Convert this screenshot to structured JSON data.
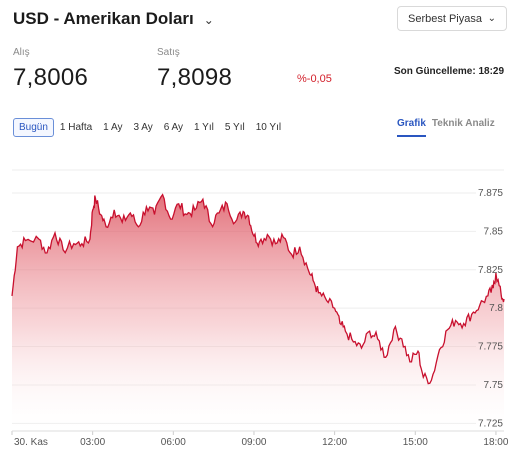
{
  "header": {
    "title": "USD - Amerikan Doları",
    "dropdown_icon": "chevron-down-icon"
  },
  "market": {
    "label": "Serbest Piyasa",
    "icon": "chevron-down-icon"
  },
  "quote": {
    "buy_label": "Alış",
    "buy_value": "7,8006",
    "sell_label": "Satış",
    "sell_value": "7,8098",
    "change": "%-0,05",
    "updated": "Son Güncelleme: 18:29"
  },
  "ranges": [
    "Bugün",
    "1 Hafta",
    "1 Ay",
    "3 Ay",
    "6 Ay",
    "1 Yıl",
    "5 Yıl",
    "10 Yıl"
  ],
  "active_range": 0,
  "tabs": [
    "Grafik",
    "Teknik Analiz"
  ],
  "active_tab": 0,
  "colors": {
    "line": "#c8102e",
    "accent": "#2a56c0",
    "negative": "#d3202b"
  },
  "chart_data": {
    "type": "area",
    "x_ticks": [
      "30. Kas",
      "03:00",
      "06:00",
      "09:00",
      "12:00",
      "15:00",
      "18:00"
    ],
    "y_ticks": [
      "7.725",
      "7.75",
      "7.775",
      "7.8",
      "7.825",
      "7.85",
      "7.875"
    ],
    "ylim": [
      7.72,
      7.89
    ],
    "xlim": [
      0,
      18.3
    ],
    "x": [
      0,
      0.2,
      0.5,
      1.0,
      1.3,
      1.6,
      1.9,
      2.3,
      2.6,
      2.9,
      3.0,
      3.1,
      3.3,
      3.5,
      3.8,
      4.1,
      4.4,
      4.7,
      5.0,
      5.3,
      5.6,
      5.9,
      6.2,
      6.5,
      6.8,
      7.1,
      7.4,
      7.7,
      8.0,
      8.3,
      8.6,
      8.8,
      9.0,
      9.2,
      9.5,
      9.8,
      10.1,
      10.4,
      10.7,
      11.0,
      11.2,
      11.4,
      11.7,
      12.0,
      12.2,
      12.4,
      12.7,
      13.0,
      13.3,
      13.6,
      13.9,
      14.2,
      14.5,
      14.8,
      15.1,
      15.3,
      15.6,
      15.9,
      16.2,
      16.5,
      16.8,
      17.1,
      17.4,
      17.7,
      17.9,
      18.0,
      18.2,
      18.3
    ],
    "values": [
      7.808,
      7.84,
      7.844,
      7.845,
      7.836,
      7.849,
      7.838,
      7.842,
      7.842,
      7.845,
      7.864,
      7.872,
      7.861,
      7.853,
      7.864,
      7.856,
      7.862,
      7.853,
      7.866,
      7.861,
      7.874,
      7.858,
      7.868,
      7.861,
      7.864,
      7.871,
      7.855,
      7.862,
      7.868,
      7.856,
      7.863,
      7.86,
      7.847,
      7.843,
      7.848,
      7.842,
      7.846,
      7.835,
      7.84,
      7.826,
      7.818,
      7.81,
      7.805,
      7.8,
      7.79,
      7.785,
      7.778,
      7.774,
      7.785,
      7.78,
      7.768,
      7.786,
      7.78,
      7.765,
      7.772,
      7.755,
      7.753,
      7.773,
      7.786,
      7.792,
      7.79,
      7.796,
      7.802,
      7.808,
      7.813,
      7.823,
      7.808,
      7.806
    ]
  }
}
